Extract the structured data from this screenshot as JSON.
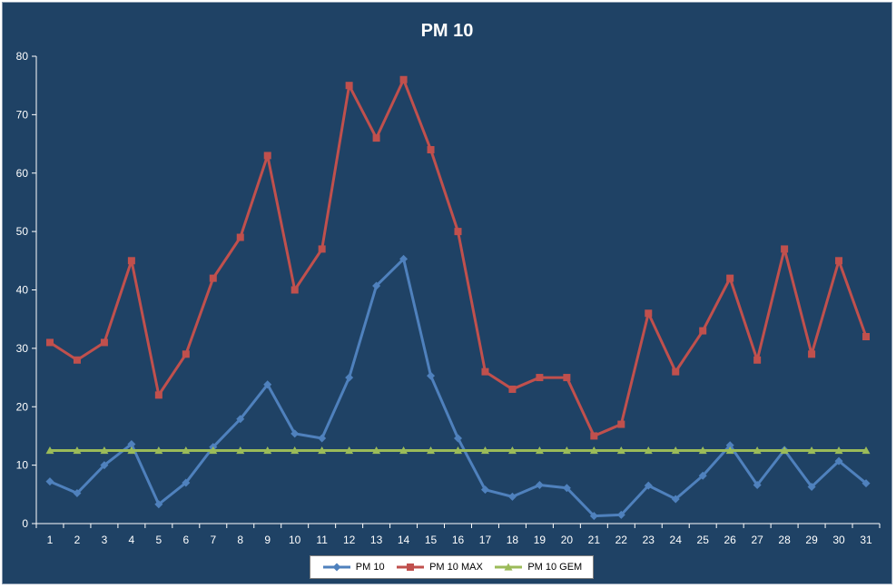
{
  "colors": {
    "background": "#1f4265",
    "axis": "#ffffff",
    "pm10": "#4f81bd",
    "pm10_max": "#c0504d",
    "pm10_gem": "#9bbb59"
  },
  "chart_data": {
    "type": "line",
    "title": "PM 10",
    "xlabel": "",
    "ylabel": "",
    "categories": [
      "1",
      "2",
      "3",
      "4",
      "5",
      "6",
      "7",
      "8",
      "9",
      "10",
      "11",
      "12",
      "13",
      "14",
      "15",
      "16",
      "17",
      "18",
      "19",
      "20",
      "21",
      "22",
      "23",
      "24",
      "25",
      "26",
      "27",
      "28",
      "29",
      "30",
      "31"
    ],
    "ylim": [
      0,
      80
    ],
    "yticks": [
      0,
      10,
      20,
      30,
      40,
      50,
      60,
      70,
      80
    ],
    "grid": false,
    "legend_position": "bottom",
    "series": [
      {
        "name": "PM 10",
        "marker": "diamond",
        "color": "#4f81bd",
        "values": [
          7.2,
          5.2,
          10,
          13.6,
          3.3,
          7,
          13.1,
          17.9,
          23.8,
          15.4,
          14.6,
          25,
          40.7,
          45.3,
          25.3,
          14.6,
          5.8,
          4.6,
          6.6,
          6.1,
          1.3,
          1.5,
          6.5,
          4.2,
          8.2,
          13.4,
          6.6,
          12.6,
          6.3,
          10.7,
          6.9
        ]
      },
      {
        "name": "PM 10 MAX",
        "marker": "square",
        "color": "#c0504d",
        "values": [
          31,
          28,
          31,
          45,
          22,
          29,
          42,
          49,
          63,
          40,
          47,
          75,
          66,
          76,
          64,
          50,
          26,
          23,
          25,
          25,
          15,
          17,
          36,
          26,
          33,
          42,
          28,
          47,
          29,
          45,
          32
        ]
      },
      {
        "name": "PM 10 GEM",
        "marker": "triangle",
        "color": "#9bbb59",
        "values": [
          12.5,
          12.5,
          12.5,
          12.5,
          12.5,
          12.5,
          12.5,
          12.5,
          12.5,
          12.5,
          12.5,
          12.5,
          12.5,
          12.5,
          12.5,
          12.5,
          12.5,
          12.5,
          12.5,
          12.5,
          12.5,
          12.5,
          12.5,
          12.5,
          12.5,
          12.5,
          12.5,
          12.5,
          12.5,
          12.5,
          12.5
        ]
      }
    ]
  }
}
